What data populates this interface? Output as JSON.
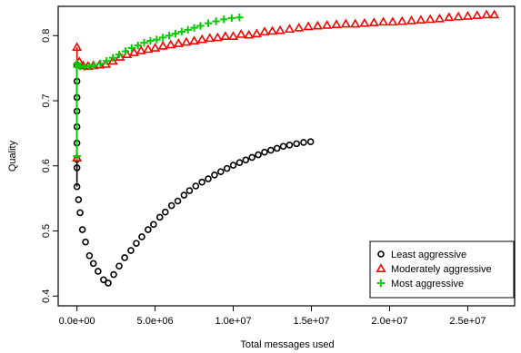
{
  "chart_data": {
    "type": "scatter",
    "title": "",
    "xlabel": "Total messages used",
    "ylabel": "Quality",
    "xlim": [
      -1200000,
      28000000
    ],
    "ylim": [
      0.385,
      0.845
    ],
    "x_ticks": [
      {
        "value": 0,
        "label": "0.0e+00"
      },
      {
        "value": 5000000,
        "label": "5.0e+06"
      },
      {
        "value": 10000000,
        "label": "1.0e+07"
      },
      {
        "value": 15000000,
        "label": "1.5e+07"
      },
      {
        "value": 20000000,
        "label": "2.0e+07"
      },
      {
        "value": 25000000,
        "label": "2.5e+07"
      }
    ],
    "y_ticks": [
      {
        "value": 0.4,
        "label": "0.4"
      },
      {
        "value": 0.5,
        "label": "0.5"
      },
      {
        "value": 0.6,
        "label": "0.6"
      },
      {
        "value": 0.7,
        "label": "0.7"
      },
      {
        "value": 0.8,
        "label": "0.8"
      }
    ],
    "grid": false,
    "legend_position": "bottom-right",
    "series": [
      {
        "name": "Least aggressive",
        "color": "#000000",
        "marker": "circle",
        "x": [
          0,
          0,
          0,
          0,
          0,
          0,
          0,
          0,
          0,
          100000,
          200000,
          350000,
          550000,
          800000,
          1050000,
          1350000,
          1700000,
          2000000,
          2350000,
          2700000,
          3050000,
          3450000,
          3800000,
          4150000,
          4550000,
          4900000,
          5300000,
          5650000,
          6050000,
          6450000,
          6850000,
          7200000,
          7600000,
          8000000,
          8400000,
          8800000,
          9200000,
          9600000,
          10000000,
          10400000,
          10800000,
          11200000,
          11600000,
          12000000,
          12400000,
          12800000,
          13200000,
          13600000,
          14050000,
          14500000,
          14950000
        ],
        "y": [
          0.755,
          0.73,
          0.705,
          0.684,
          0.66,
          0.635,
          0.61,
          0.597,
          0.568,
          0.548,
          0.528,
          0.502,
          0.483,
          0.462,
          0.45,
          0.438,
          0.425,
          0.42,
          0.433,
          0.446,
          0.459,
          0.47,
          0.481,
          0.491,
          0.502,
          0.51,
          0.521,
          0.529,
          0.539,
          0.546,
          0.555,
          0.562,
          0.569,
          0.575,
          0.58,
          0.586,
          0.591,
          0.596,
          0.601,
          0.605,
          0.609,
          0.613,
          0.617,
          0.621,
          0.624,
          0.627,
          0.63,
          0.632,
          0.634,
          0.636,
          0.637
        ]
      },
      {
        "name": "Moderately aggressive",
        "color": "#ff0000",
        "marker": "triangle",
        "x": [
          0,
          0,
          150000,
          400000,
          700000,
          1050000,
          1450000,
          1850000,
          2300000,
          2750000,
          3200000,
          3650000,
          4100000,
          4550000,
          5000000,
          5500000,
          6000000,
          6500000,
          7000000,
          7500000,
          8000000,
          8500000,
          9000000,
          9500000,
          10000000,
          10500000,
          11000000,
          11500000,
          12000000,
          12500000,
          13000000,
          13600000,
          14200000,
          14800000,
          15400000,
          16000000,
          16600000,
          17200000,
          17800000,
          18400000,
          19000000,
          19600000,
          20200000,
          20800000,
          21400000,
          22000000,
          22600000,
          23200000,
          23800000,
          24400000,
          25000000,
          25600000,
          26200000,
          26700000
        ],
        "y": [
          0.612,
          0.782,
          0.76,
          0.754,
          0.753,
          0.754,
          0.755,
          0.756,
          0.761,
          0.767,
          0.771,
          0.774,
          0.777,
          0.779,
          0.781,
          0.784,
          0.786,
          0.788,
          0.79,
          0.792,
          0.794,
          0.796,
          0.797,
          0.799,
          0.799,
          0.802,
          0.801,
          0.803,
          0.806,
          0.807,
          0.808,
          0.81,
          0.812,
          0.814,
          0.815,
          0.816,
          0.817,
          0.818,
          0.818,
          0.819,
          0.82,
          0.821,
          0.821,
          0.822,
          0.823,
          0.824,
          0.825,
          0.826,
          0.828,
          0.829,
          0.83,
          0.831,
          0.832,
          0.832
        ]
      },
      {
        "name": "Most aggressive",
        "color": "#00cc00",
        "marker": "plus",
        "x": [
          0,
          0,
          0,
          200000,
          500000,
          800000,
          1100000,
          1500000,
          1900000,
          2300000,
          2700000,
          3100000,
          3500000,
          3900000,
          4300000,
          4700000,
          5100000,
          5500000,
          5900000,
          6300000,
          6700000,
          7100000,
          7500000,
          7900000,
          8400000,
          8900000,
          9400000,
          9900000,
          10400000
        ],
        "y": [
          0.615,
          0.757,
          0.752,
          0.753,
          0.752,
          0.753,
          0.754,
          0.757,
          0.761,
          0.766,
          0.771,
          0.776,
          0.781,
          0.785,
          0.789,
          0.792,
          0.794,
          0.797,
          0.8,
          0.803,
          0.806,
          0.809,
          0.812,
          0.815,
          0.819,
          0.822,
          0.825,
          0.827,
          0.828
        ]
      }
    ]
  }
}
